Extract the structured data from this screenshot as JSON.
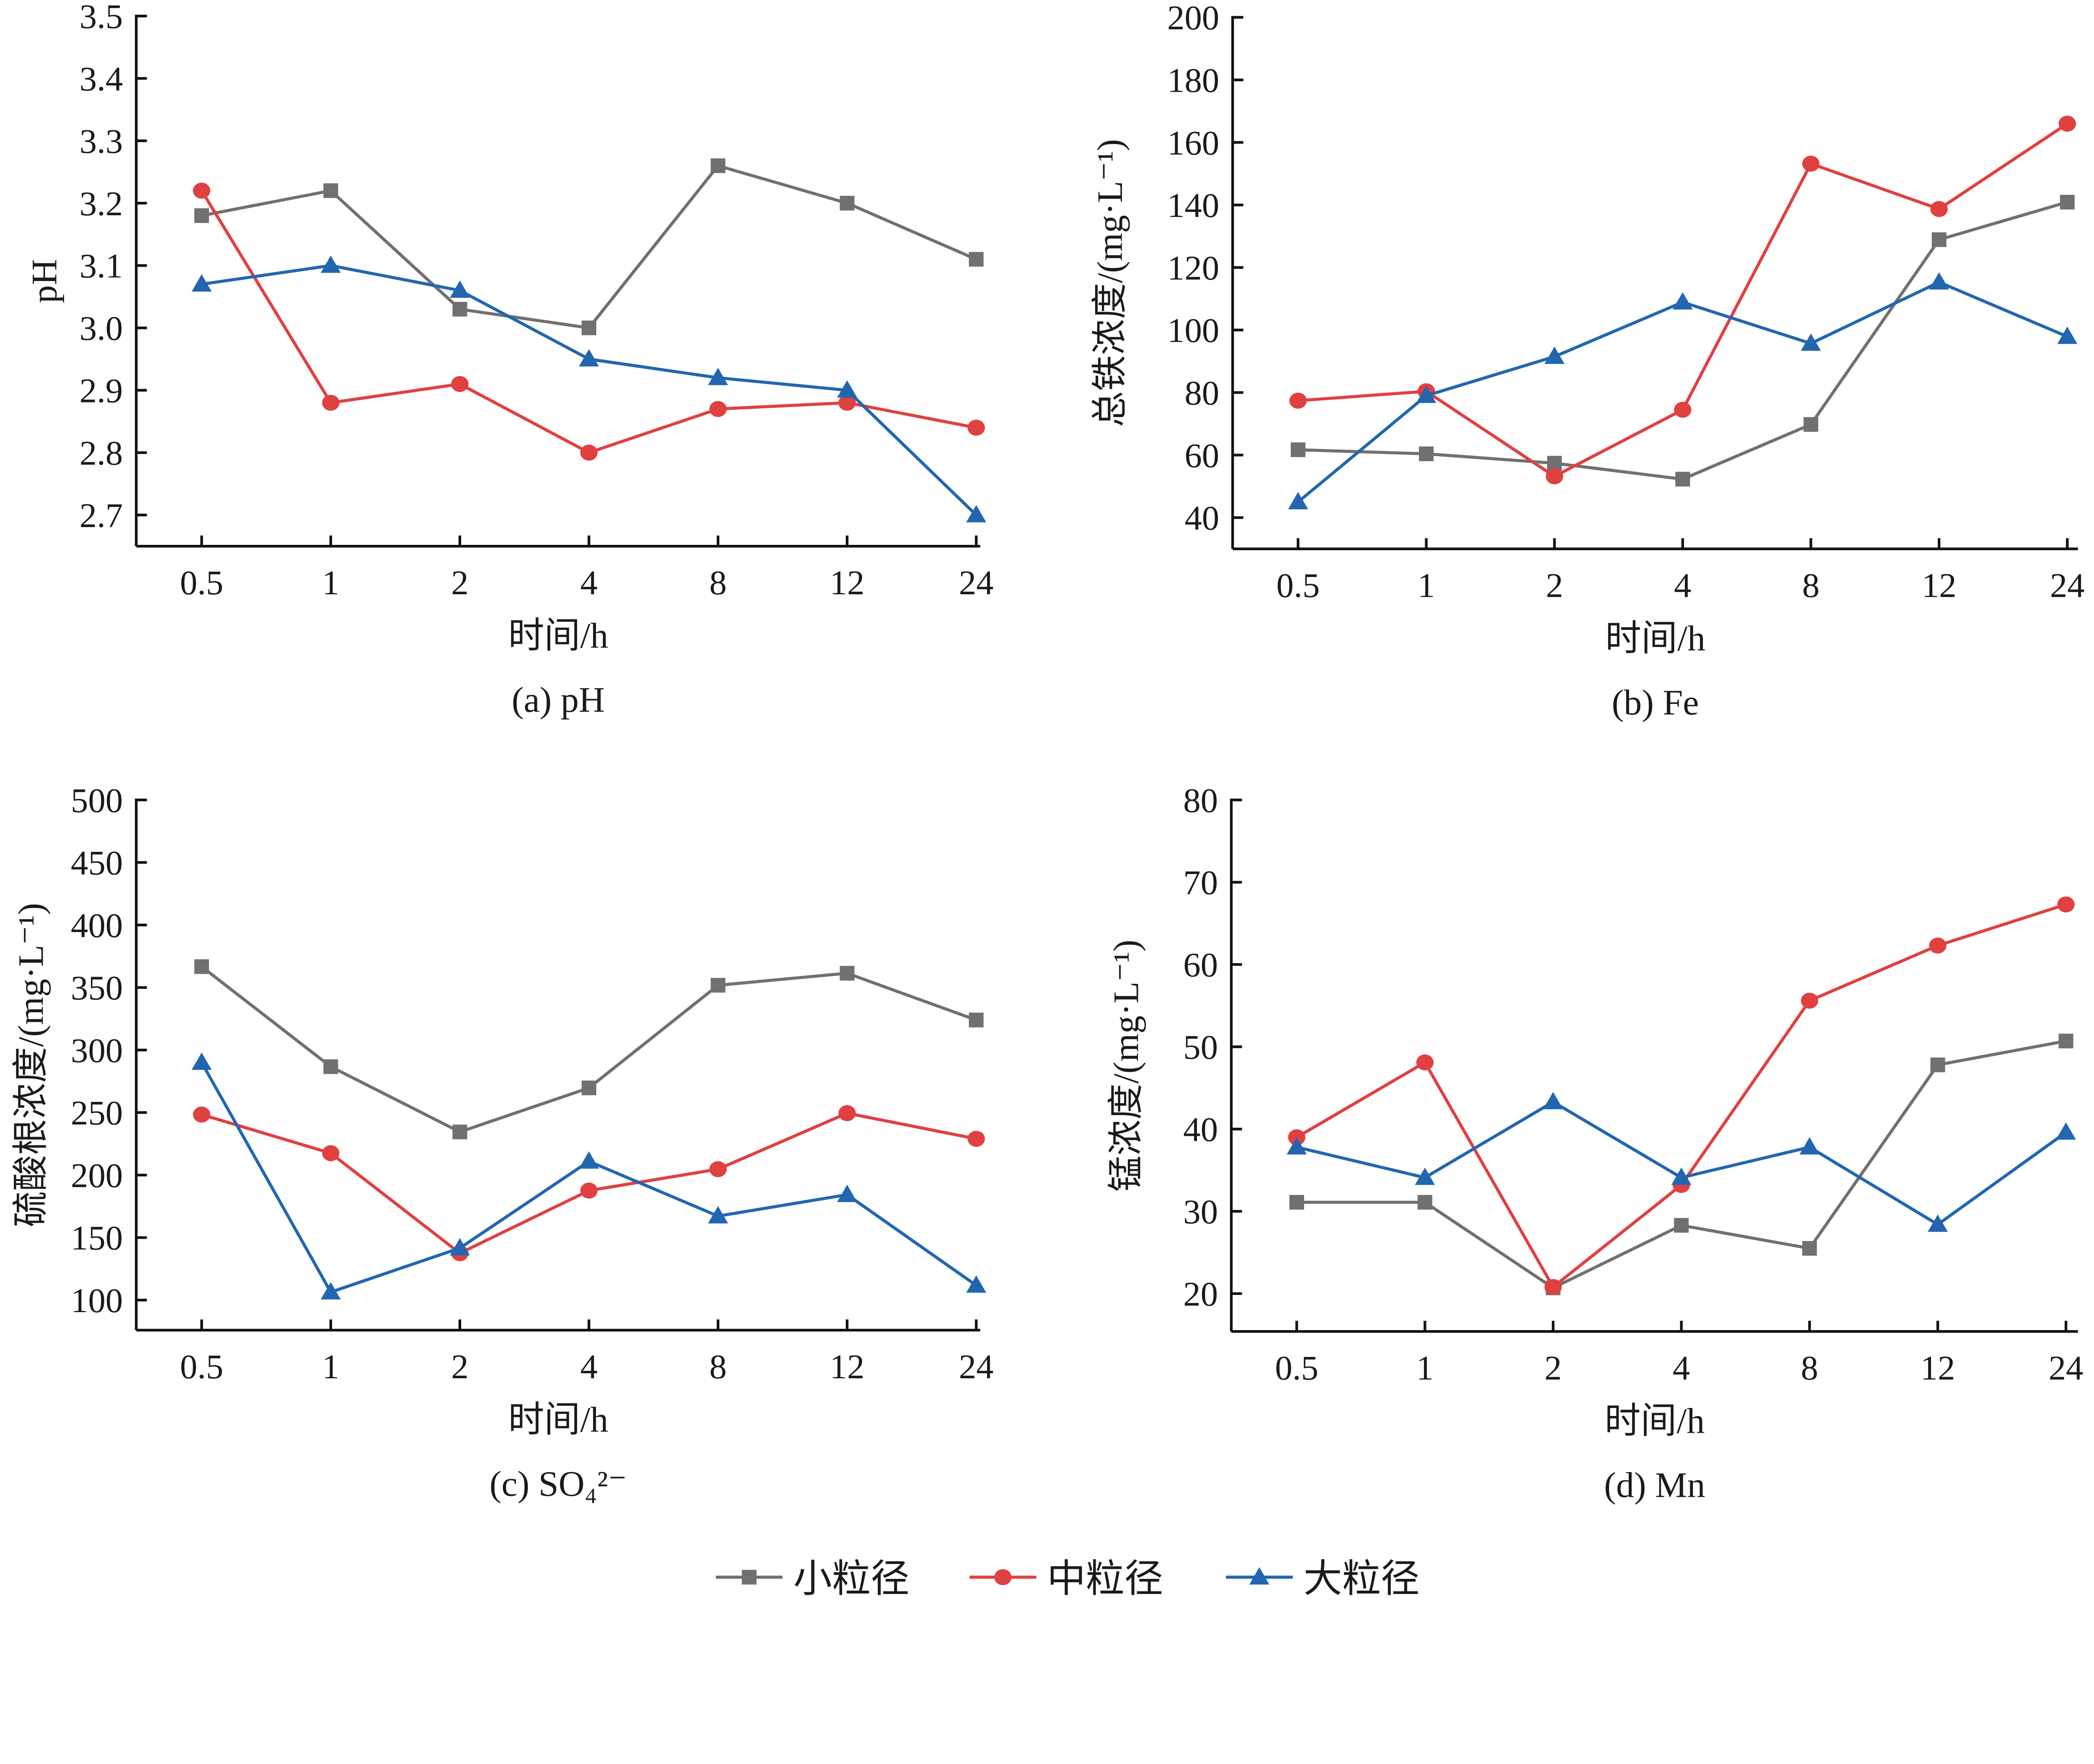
{
  "legend": {
    "placement": "bottom-center",
    "entries": [
      {
        "name": "小粒径",
        "color": "#707070",
        "marker": "square"
      },
      {
        "name": "中粒径",
        "color": "#e04040",
        "marker": "circle"
      },
      {
        "name": "大粒径",
        "color": "#2266b0",
        "marker": "triangle"
      }
    ]
  },
  "chart_data": [
    {
      "type": "line",
      "caption": "(a)  pH",
      "xlabel": "时间/h",
      "ylabel": "pH",
      "categories": [
        "0.5",
        "1",
        "2",
        "4",
        "8",
        "12",
        "24"
      ],
      "ylim": [
        2.65,
        3.5
      ],
      "yticks": [
        2.7,
        2.8,
        2.9,
        3.0,
        3.1,
        3.2,
        3.3,
        3.4,
        3.5
      ],
      "ytick_decimals": 1,
      "grid": false,
      "series": [
        {
          "name": "小粒径",
          "values": [
            3.18,
            3.22,
            3.03,
            3.0,
            3.26,
            3.2,
            3.11
          ]
        },
        {
          "name": "中粒径",
          "values": [
            3.22,
            2.88,
            2.91,
            2.8,
            2.87,
            2.88,
            2.84
          ]
        },
        {
          "name": "大粒径",
          "values": [
            3.07,
            3.1,
            3.06,
            2.95,
            2.92,
            2.9,
            2.7
          ]
        }
      ]
    },
    {
      "type": "line",
      "caption": "(b)  Fe",
      "xlabel": "时间/h",
      "ylabel": "总铁浓度/(mg·L⁻¹)",
      "categories": [
        "0.5",
        "1",
        "2",
        "4",
        "8",
        "12",
        "24"
      ],
      "ylim": [
        30,
        200
      ],
      "yticks": [
        40,
        60,
        80,
        100,
        120,
        140,
        160,
        180,
        200
      ],
      "ytick_decimals": 0,
      "grid": false,
      "series": [
        {
          "name": "小粒径",
          "values": [
            61.7,
            60.4,
            57.4,
            52.3,
            69.8,
            128.9,
            140.9
          ]
        },
        {
          "name": "中粒径",
          "values": [
            77.4,
            80.4,
            53.2,
            74.5,
            153.2,
            138.7,
            166.0
          ]
        },
        {
          "name": "大粒径",
          "values": [
            45.0,
            79.0,
            91.5,
            108.9,
            95.7,
            115.3,
            97.9
          ]
        }
      ]
    },
    {
      "type": "line",
      "caption": "(c)  SO₄²⁻",
      "xlabel": "时间/h",
      "ylabel": "硫酸根浓度/(mg·L⁻¹)",
      "categories": [
        "0.5",
        "1",
        "2",
        "4",
        "8",
        "12",
        "24"
      ],
      "ylim": [
        76,
        500
      ],
      "yticks": [
        100,
        150,
        200,
        250,
        300,
        350,
        400,
        450,
        500
      ],
      "ytick_decimals": 0,
      "grid": false,
      "series": [
        {
          "name": "小粒径",
          "values": [
            366.7,
            286.7,
            234.5,
            269.7,
            351.8,
            361.4,
            324.0
          ]
        },
        {
          "name": "中粒径",
          "values": [
            248.4,
            217.5,
            137.5,
            187.6,
            204.7,
            249.5,
            229.0
          ]
        },
        {
          "name": "大粒径",
          "values": [
            290.0,
            106.4,
            141.6,
            211.0,
            167.2,
            184.3,
            111.8
          ]
        }
      ]
    },
    {
      "type": "line",
      "caption": "(d)  Mn",
      "xlabel": "时间/h",
      "ylabel": "锰浓度/(mg·L⁻¹)",
      "categories": [
        "0.5",
        "1",
        "2",
        "4",
        "8",
        "12",
        "24"
      ],
      "ylim": [
        15.4,
        80
      ],
      "yticks": [
        20,
        30,
        40,
        50,
        60,
        70,
        80
      ],
      "ytick_decimals": 0,
      "grid": false,
      "series": [
        {
          "name": "小粒径",
          "values": [
            31.1,
            31.1,
            20.7,
            28.3,
            25.5,
            47.8,
            50.7
          ]
        },
        {
          "name": "中粒径",
          "values": [
            39.0,
            48.1,
            20.8,
            33.2,
            55.6,
            62.3,
            67.3
          ]
        },
        {
          "name": "大粒径",
          "values": [
            37.8,
            34.1,
            43.3,
            34.1,
            37.8,
            28.4,
            39.6
          ]
        }
      ]
    }
  ]
}
